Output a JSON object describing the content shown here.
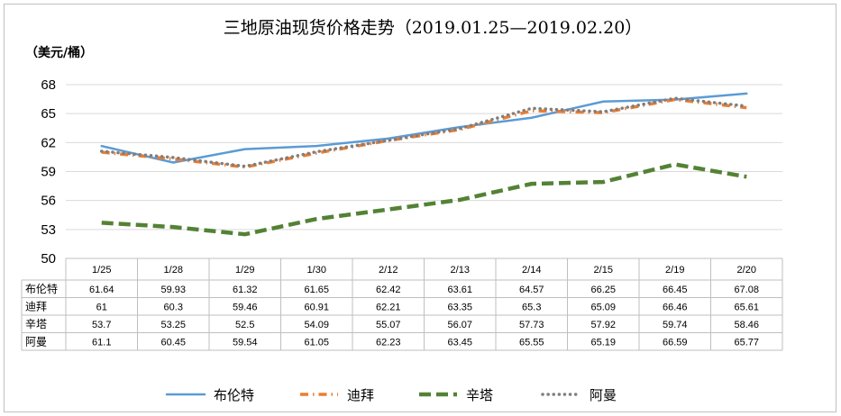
{
  "chart_data": {
    "type": "line",
    "title": "三地原油现货价格走势（2019.01.25—2019.02.20）",
    "ylabel": "（美元/桶）",
    "xlabel": "",
    "ylim": [
      50,
      68
    ],
    "yticks": [
      50,
      53,
      56,
      59,
      62,
      65,
      68
    ],
    "grid": true,
    "legend_position": "bottom",
    "data_table": true,
    "categories": [
      "1/25",
      "1/28",
      "1/29",
      "1/30",
      "2/12",
      "2/13",
      "2/14",
      "2/15",
      "2/19",
      "2/20"
    ],
    "series": [
      {
        "name": "布伦特",
        "color": "#5b9bd5",
        "style": "solid",
        "values": [
          61.64,
          59.93,
          61.32,
          61.65,
          62.42,
          63.61,
          64.57,
          66.25,
          66.45,
          67.08
        ],
        "labels": [
          "61.64",
          "59.93",
          "61.32",
          "61.65",
          "62.42",
          "63.61",
          "64.57",
          "66.25",
          "66.45",
          "67.08"
        ]
      },
      {
        "name": "迪拜",
        "color": "#ed7d31",
        "style": "dash-dot",
        "values": [
          61,
          60.3,
          59.46,
          60.91,
          62.21,
          63.35,
          65.3,
          65.09,
          66.46,
          65.61
        ],
        "labels": [
          "61",
          "60.3",
          "59.46",
          "60.91",
          "62.21",
          "63.35",
          "65.3",
          "65.09",
          "66.46",
          "65.61"
        ]
      },
      {
        "name": "辛塔",
        "color": "#548235",
        "style": "dashed",
        "values": [
          53.7,
          53.25,
          52.5,
          54.09,
          55.07,
          56.07,
          57.73,
          57.92,
          59.74,
          58.46
        ],
        "labels": [
          "53.7",
          "53.25",
          "52.5",
          "54.09",
          "55.07",
          "56.07",
          "57.73",
          "57.92",
          "59.74",
          "58.46"
        ]
      },
      {
        "name": "阿曼",
        "color": "#7f7f7f",
        "style": "dotted",
        "values": [
          61.1,
          60.45,
          59.54,
          61.05,
          62.23,
          63.45,
          65.55,
          65.19,
          66.59,
          65.77
        ],
        "labels": [
          "61.1",
          "60.45",
          "59.54",
          "61.05",
          "62.23",
          "63.45",
          "65.55",
          "65.19",
          "66.59",
          "65.77"
        ]
      }
    ]
  }
}
